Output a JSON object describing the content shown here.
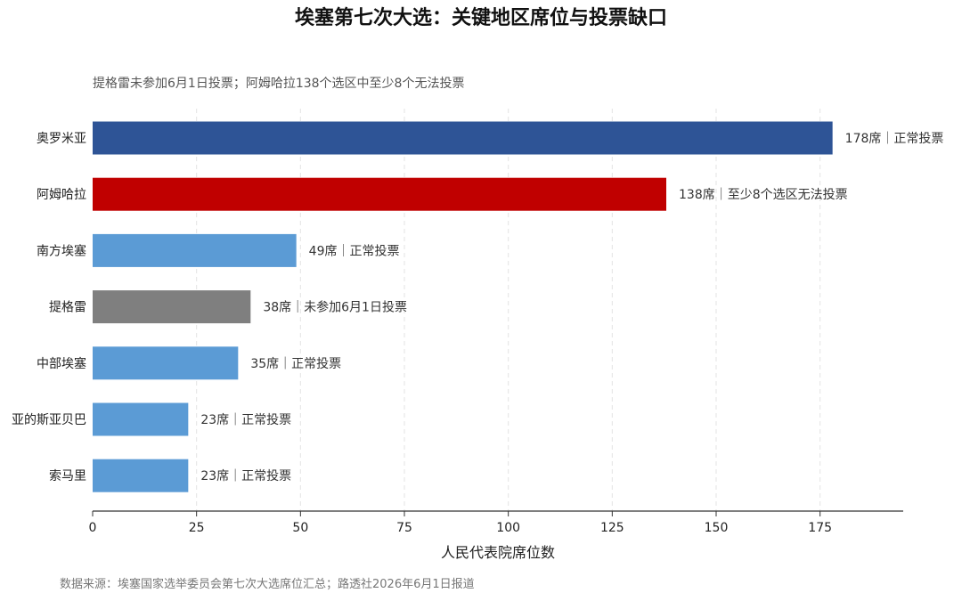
{
  "chart_data": {
    "type": "bar",
    "orientation": "horizontal",
    "title": "埃塞第七次大选：关键地区席位与投票缺口",
    "subtitle": "提格雷未参加6月1日投票；阿姆哈拉138个选区中至少8个无法投票",
    "xlabel": "人民代表院席位数",
    "ylabel": "",
    "xlim": [
      0,
      195
    ],
    "x_ticks": [
      0,
      25,
      50,
      75,
      100,
      125,
      150,
      175
    ],
    "grid": "vertical dashed",
    "source": "数据来源：埃塞国家选举委员会第七次大选席位汇总；路透社2026年6月1日报道",
    "categories": [
      "奥罗米亚",
      "阿姆哈拉",
      "南方埃塞",
      "提格雷",
      "中部埃塞",
      "亚的斯亚贝巴",
      "索马里"
    ],
    "values": [
      178,
      138,
      49,
      38,
      35,
      23,
      23
    ],
    "labels": [
      "178席｜正常投票",
      "138席｜至少8个选区无法投票",
      "49席｜正常投票",
      "38席｜未参加6月1日投票",
      "35席｜正常投票",
      "23席｜正常投票",
      "23席｜正常投票"
    ],
    "colors": [
      "#2e5496",
      "#c00000",
      "#5b9bd5",
      "#7f7f7f",
      "#5b9bd5",
      "#5b9bd5",
      "#5b9bd5"
    ]
  }
}
